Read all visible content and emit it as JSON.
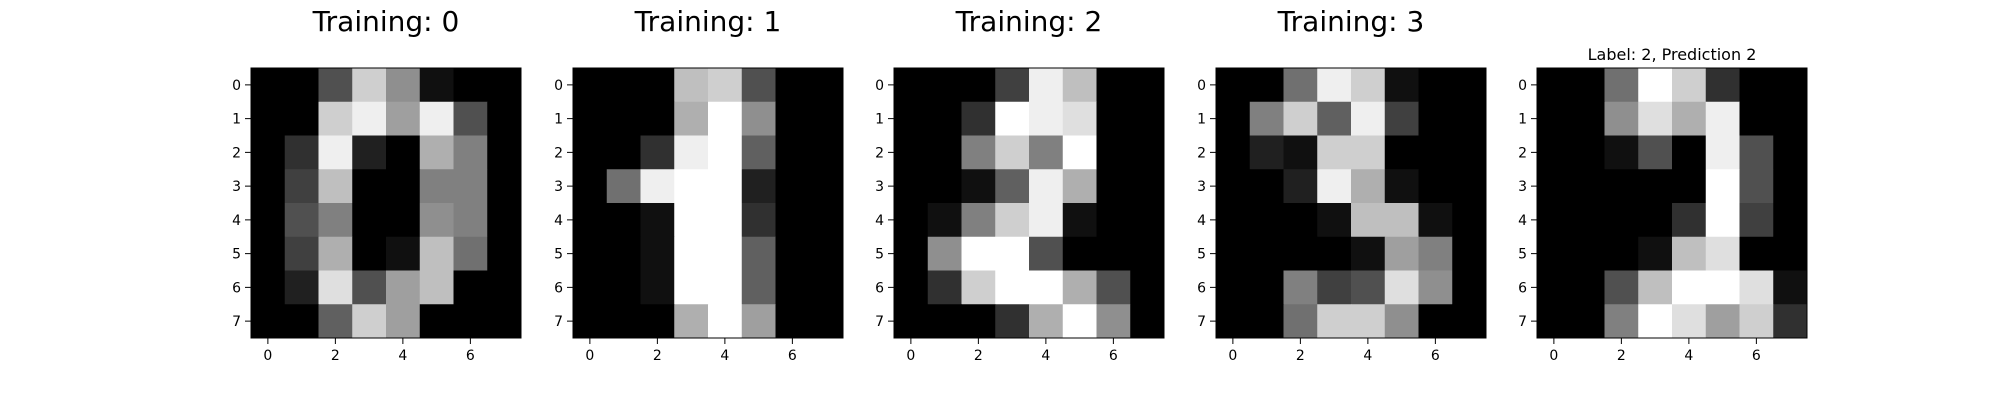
{
  "chart_data": [
    {
      "type": "heatmap",
      "title": "Training: 0",
      "colormap": "gray",
      "x": [
        0,
        1,
        2,
        3,
        4,
        5,
        6,
        7
      ],
      "y": [
        0,
        1,
        2,
        3,
        4,
        5,
        6,
        7
      ],
      "xticks": [
        "0",
        "2",
        "4",
        "6"
      ],
      "yticks": [
        "0",
        "1",
        "2",
        "3",
        "4",
        "5",
        "6",
        "7"
      ],
      "vmin": 0,
      "vmax": 16,
      "values": [
        [
          0,
          0,
          5,
          13,
          9,
          1,
          0,
          0
        ],
        [
          0,
          0,
          13,
          15,
          10,
          15,
          5,
          0
        ],
        [
          0,
          3,
          15,
          2,
          0,
          11,
          8,
          0
        ],
        [
          0,
          4,
          12,
          0,
          0,
          8,
          8,
          0
        ],
        [
          0,
          5,
          8,
          0,
          0,
          9,
          8,
          0
        ],
        [
          0,
          4,
          11,
          0,
          1,
          12,
          7,
          0
        ],
        [
          0,
          2,
          14,
          5,
          10,
          12,
          0,
          0
        ],
        [
          0,
          0,
          6,
          13,
          10,
          0,
          0,
          0
        ]
      ]
    },
    {
      "type": "heatmap",
      "title": "Training: 1",
      "colormap": "gray",
      "x": [
        0,
        1,
        2,
        3,
        4,
        5,
        6,
        7
      ],
      "y": [
        0,
        1,
        2,
        3,
        4,
        5,
        6,
        7
      ],
      "xticks": [
        "0",
        "2",
        "4",
        "6"
      ],
      "yticks": [
        "0",
        "1",
        "2",
        "3",
        "4",
        "5",
        "6",
        "7"
      ],
      "vmin": 0,
      "vmax": 16,
      "values": [
        [
          0,
          0,
          0,
          12,
          13,
          5,
          0,
          0
        ],
        [
          0,
          0,
          0,
          11,
          16,
          9,
          0,
          0
        ],
        [
          0,
          0,
          3,
          15,
          16,
          6,
          0,
          0
        ],
        [
          0,
          7,
          15,
          16,
          16,
          2,
          0,
          0
        ],
        [
          0,
          0,
          1,
          16,
          16,
          3,
          0,
          0
        ],
        [
          0,
          0,
          1,
          16,
          16,
          6,
          0,
          0
        ],
        [
          0,
          0,
          1,
          16,
          16,
          6,
          0,
          0
        ],
        [
          0,
          0,
          0,
          11,
          16,
          10,
          0,
          0
        ]
      ]
    },
    {
      "type": "heatmap",
      "title": "Training: 2",
      "colormap": "gray",
      "x": [
        0,
        1,
        2,
        3,
        4,
        5,
        6,
        7
      ],
      "y": [
        0,
        1,
        2,
        3,
        4,
        5,
        6,
        7
      ],
      "xticks": [
        "0",
        "2",
        "4",
        "6"
      ],
      "yticks": [
        "0",
        "1",
        "2",
        "3",
        "4",
        "5",
        "6",
        "7"
      ],
      "vmin": 0,
      "vmax": 16,
      "values": [
        [
          0,
          0,
          0,
          4,
          15,
          12,
          0,
          0
        ],
        [
          0,
          0,
          3,
          16,
          15,
          14,
          0,
          0
        ],
        [
          0,
          0,
          8,
          13,
          8,
          16,
          0,
          0
        ],
        [
          0,
          0,
          1,
          6,
          15,
          11,
          0,
          0
        ],
        [
          0,
          1,
          8,
          13,
          15,
          1,
          0,
          0
        ],
        [
          0,
          9,
          16,
          16,
          5,
          0,
          0,
          0
        ],
        [
          0,
          3,
          13,
          16,
          16,
          11,
          5,
          0
        ],
        [
          0,
          0,
          0,
          3,
          11,
          16,
          9,
          0
        ]
      ]
    },
    {
      "type": "heatmap",
      "title": "Training: 3",
      "colormap": "gray",
      "x": [
        0,
        1,
        2,
        3,
        4,
        5,
        6,
        7
      ],
      "y": [
        0,
        1,
        2,
        3,
        4,
        5,
        6,
        7
      ],
      "xticks": [
        "0",
        "2",
        "4",
        "6"
      ],
      "yticks": [
        "0",
        "1",
        "2",
        "3",
        "4",
        "5",
        "6",
        "7"
      ],
      "vmin": 0,
      "vmax": 16,
      "values": [
        [
          0,
          0,
          7,
          15,
          13,
          1,
          0,
          0
        ],
        [
          0,
          8,
          13,
          6,
          15,
          4,
          0,
          0
        ],
        [
          0,
          2,
          1,
          13,
          13,
          0,
          0,
          0
        ],
        [
          0,
          0,
          2,
          15,
          11,
          1,
          0,
          0
        ],
        [
          0,
          0,
          0,
          1,
          12,
          12,
          1,
          0
        ],
        [
          0,
          0,
          0,
          0,
          1,
          10,
          8,
          0
        ],
        [
          0,
          0,
          8,
          4,
          5,
          14,
          9,
          0
        ],
        [
          0,
          0,
          7,
          13,
          13,
          9,
          0,
          0
        ]
      ]
    },
    {
      "type": "heatmap",
      "title": "Label: 2, Prediction 2",
      "colormap": "gray",
      "x": [
        0,
        1,
        2,
        3,
        4,
        5,
        6,
        7
      ],
      "y": [
        0,
        1,
        2,
        3,
        4,
        5,
        6,
        7
      ],
      "xticks": [
        "0",
        "2",
        "4",
        "6"
      ],
      "yticks": [
        "0",
        "1",
        "2",
        "3",
        "4",
        "5",
        "6",
        "7"
      ],
      "vmin": 0,
      "vmax": 16,
      "values": [
        [
          0,
          0,
          7,
          16,
          13,
          3,
          0,
          0
        ],
        [
          0,
          0,
          9,
          14,
          11,
          15,
          0,
          0
        ],
        [
          0,
          0,
          1,
          5,
          0,
          15,
          5,
          0
        ],
        [
          0,
          0,
          0,
          0,
          0,
          16,
          5,
          0
        ],
        [
          0,
          0,
          0,
          0,
          3,
          16,
          4,
          0
        ],
        [
          0,
          0,
          0,
          1,
          12,
          14,
          0,
          0
        ],
        [
          0,
          0,
          5,
          12,
          16,
          16,
          14,
          1
        ],
        [
          0,
          0,
          8,
          16,
          14,
          10,
          13,
          3
        ]
      ]
    }
  ]
}
